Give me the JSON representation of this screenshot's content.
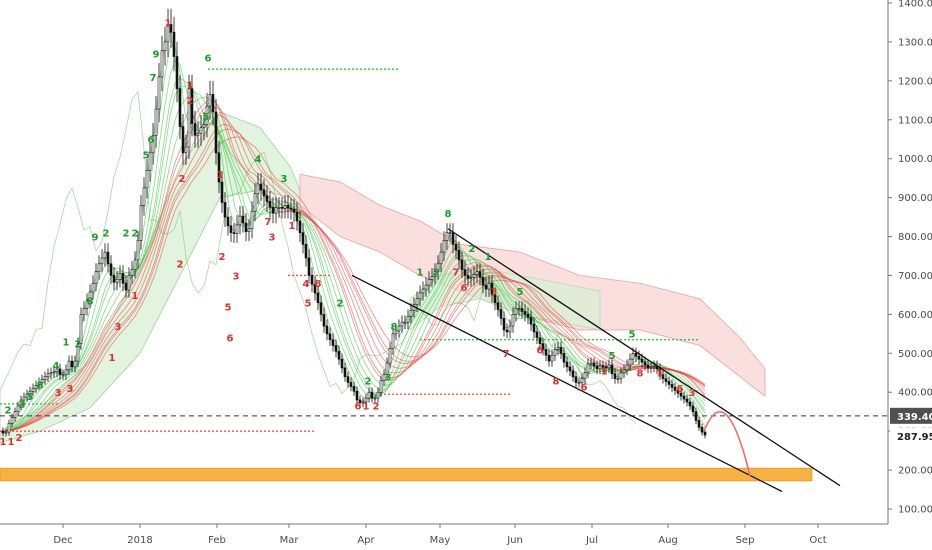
{
  "chart_data": {
    "type": "candlestick",
    "x_labels": [
      "Dec",
      "2018",
      "Feb",
      "Mar",
      "Apr",
      "May",
      "Jun",
      "Jul",
      "Aug",
      "Sep",
      "Oct"
    ],
    "y_ticks": [
      "1400.00",
      "1300.00",
      "1200.00",
      "1100.00",
      "1000.00",
      "900.00",
      "800.00",
      "700.00",
      "600.00",
      "500.00",
      "400.00",
      "300.00",
      "200.00",
      "100.00"
    ],
    "ylim": [
      60,
      1400
    ],
    "price_markers": [
      {
        "label": "339.40",
        "value": 339.4,
        "style": "dark"
      },
      {
        "label": "287.95",
        "value": 287.95,
        "style": "plain"
      }
    ],
    "close_path": [
      [
        0,
        300
      ],
      [
        4,
        290
      ],
      [
        8,
        320
      ],
      [
        12,
        340
      ],
      [
        16,
        360
      ],
      [
        20,
        380
      ],
      [
        24,
        390
      ],
      [
        28,
        400
      ],
      [
        32,
        410
      ],
      [
        36,
        420
      ],
      [
        40,
        430
      ],
      [
        44,
        440
      ],
      [
        48,
        450
      ],
      [
        52,
        450
      ],
      [
        56,
        460
      ],
      [
        60,
        440
      ],
      [
        64,
        450
      ],
      [
        68,
        480
      ],
      [
        72,
        460
      ],
      [
        76,
        500
      ],
      [
        80,
        600
      ],
      [
        84,
        620
      ],
      [
        88,
        650
      ],
      [
        92,
        680
      ],
      [
        96,
        720
      ],
      [
        100,
        740
      ],
      [
        104,
        760
      ],
      [
        108,
        720
      ],
      [
        112,
        680
      ],
      [
        116,
        690
      ],
      [
        120,
        710
      ],
      [
        124,
        650
      ],
      [
        128,
        700
      ],
      [
        132,
        720
      ],
      [
        136,
        760
      ],
      [
        140,
        880
      ],
      [
        144,
        940
      ],
      [
        148,
        1000
      ],
      [
        152,
        1060
      ],
      [
        156,
        1150
      ],
      [
        160,
        1270
      ],
      [
        164,
        1300
      ],
      [
        168,
        1360
      ],
      [
        172,
        1290
      ],
      [
        176,
        1180
      ],
      [
        180,
        1050
      ],
      [
        184,
        980
      ],
      [
        188,
        1180
      ],
      [
        192,
        1060
      ],
      [
        196,
        1060
      ],
      [
        200,
        1080
      ],
      [
        204,
        1090
      ],
      [
        208,
        1180
      ],
      [
        212,
        1120
      ],
      [
        216,
        980
      ],
      [
        220,
        900
      ],
      [
        224,
        850
      ],
      [
        228,
        820
      ],
      [
        232,
        800
      ],
      [
        236,
        830
      ],
      [
        240,
        860
      ],
      [
        244,
        810
      ],
      [
        248,
        820
      ],
      [
        252,
        880
      ],
      [
        256,
        940
      ],
      [
        260,
        920
      ],
      [
        264,
        900
      ],
      [
        268,
        880
      ],
      [
        272,
        860
      ],
      [
        276,
        880
      ],
      [
        280,
        870
      ],
      [
        284,
        880
      ],
      [
        288,
        870
      ],
      [
        292,
        870
      ],
      [
        296,
        840
      ],
      [
        300,
        800
      ],
      [
        304,
        760
      ],
      [
        308,
        700
      ],
      [
        312,
        670
      ],
      [
        316,
        640
      ],
      [
        320,
        600
      ],
      [
        324,
        560
      ],
      [
        328,
        540
      ],
      [
        332,
        520
      ],
      [
        336,
        500
      ],
      [
        340,
        470
      ],
      [
        344,
        440
      ],
      [
        348,
        420
      ],
      [
        352,
        410
      ],
      [
        356,
        380
      ],
      [
        360,
        370
      ],
      [
        364,
        380
      ],
      [
        368,
        400
      ],
      [
        372,
        380
      ],
      [
        376,
        390
      ],
      [
        380,
        430
      ],
      [
        384,
        450
      ],
      [
        388,
        500
      ],
      [
        392,
        550
      ],
      [
        396,
        560
      ],
      [
        400,
        580
      ],
      [
        404,
        580
      ],
      [
        408,
        600
      ],
      [
        412,
        620
      ],
      [
        416,
        640
      ],
      [
        420,
        660
      ],
      [
        424,
        670
      ],
      [
        428,
        690
      ],
      [
        432,
        700
      ],
      [
        436,
        720
      ],
      [
        440,
        760
      ],
      [
        444,
        800
      ],
      [
        448,
        820
      ],
      [
        452,
        780
      ],
      [
        456,
        760
      ],
      [
        460,
        720
      ],
      [
        464,
        700
      ],
      [
        468,
        690
      ],
      [
        472,
        700
      ],
      [
        476,
        710
      ],
      [
        480,
        690
      ],
      [
        484,
        660
      ],
      [
        488,
        680
      ],
      [
        492,
        640
      ],
      [
        496,
        620
      ],
      [
        500,
        590
      ],
      [
        504,
        550
      ],
      [
        508,
        560
      ],
      [
        512,
        600
      ],
      [
        516,
        620
      ],
      [
        520,
        610
      ],
      [
        524,
        600
      ],
      [
        528,
        590
      ],
      [
        532,
        560
      ],
      [
        536,
        540
      ],
      [
        540,
        520
      ],
      [
        544,
        500
      ],
      [
        548,
        480
      ],
      [
        552,
        500
      ],
      [
        556,
        520
      ],
      [
        560,
        500
      ],
      [
        564,
        470
      ],
      [
        568,
        460
      ],
      [
        572,
        440
      ],
      [
        576,
        420
      ],
      [
        580,
        430
      ],
      [
        584,
        450
      ],
      [
        588,
        480
      ],
      [
        592,
        470
      ],
      [
        596,
        460
      ],
      [
        600,
        470
      ],
      [
        604,
        460
      ],
      [
        608,
        470
      ],
      [
        612,
        440
      ],
      [
        616,
        430
      ],
      [
        620,
        450
      ],
      [
        624,
        460
      ],
      [
        628,
        480
      ],
      [
        632,
        500
      ],
      [
        636,
        490
      ],
      [
        640,
        480
      ],
      [
        644,
        470
      ],
      [
        648,
        460
      ],
      [
        652,
        470
      ],
      [
        656,
        460
      ],
      [
        660,
        440
      ],
      [
        664,
        430
      ],
      [
        668,
        420
      ],
      [
        672,
        410
      ],
      [
        676,
        400
      ],
      [
        680,
        390
      ],
      [
        684,
        380
      ],
      [
        688,
        370
      ],
      [
        692,
        350
      ],
      [
        696,
        320
      ],
      [
        700,
        300
      ],
      [
        704,
        290
      ]
    ],
    "td_labels": [
      {
        "t": "1",
        "x": 3,
        "v": 265,
        "c": "red"
      },
      {
        "t": "1",
        "x": 11,
        "v": 265,
        "c": "red"
      },
      {
        "t": "2",
        "x": 19,
        "v": 275,
        "c": "red"
      },
      {
        "t": "2",
        "x": 8,
        "v": 345,
        "c": "green"
      },
      {
        "t": "3",
        "x": 22,
        "v": 360,
        "c": "green"
      },
      {
        "t": "5",
        "x": 30,
        "v": 380,
        "c": "green"
      },
      {
        "t": "8",
        "x": 40,
        "v": 410,
        "c": "green"
      },
      {
        "t": "3",
        "x": 58,
        "v": 390,
        "c": "red"
      },
      {
        "t": "3",
        "x": 70,
        "v": 400,
        "c": "red"
      },
      {
        "t": "4",
        "x": 56,
        "v": 460,
        "c": "green"
      },
      {
        "t": "1",
        "x": 66,
        "v": 520,
        "c": "green"
      },
      {
        "t": "2",
        "x": 78,
        "v": 515,
        "c": "green"
      },
      {
        "t": "8",
        "x": 90,
        "v": 625,
        "c": "green"
      },
      {
        "t": "9",
        "x": 95,
        "v": 790,
        "c": "green"
      },
      {
        "t": "2",
        "x": 106,
        "v": 800,
        "c": "green"
      },
      {
        "t": "3",
        "x": 118,
        "v": 560,
        "c": "red"
      },
      {
        "t": "1",
        "x": 112,
        "v": 480,
        "c": "red"
      },
      {
        "t": "2",
        "x": 126,
        "v": 800,
        "c": "green"
      },
      {
        "t": "2",
        "x": 135,
        "v": 800,
        "c": "green"
      },
      {
        "t": "1",
        "x": 135,
        "v": 640,
        "c": "red"
      },
      {
        "t": "5",
        "x": 146,
        "v": 1000,
        "c": "green"
      },
      {
        "t": "6",
        "x": 151,
        "v": 1040,
        "c": "green"
      },
      {
        "t": "7",
        "x": 153,
        "v": 1200,
        "c": "green"
      },
      {
        "t": "9",
        "x": 156,
        "v": 1260,
        "c": "green"
      },
      {
        "t": "1",
        "x": 168,
        "v": 1340,
        "c": "red"
      },
      {
        "t": "2",
        "x": 180,
        "v": 720,
        "c": "red"
      },
      {
        "t": "2",
        "x": 182,
        "v": 940,
        "c": "red"
      },
      {
        "t": "1",
        "x": 190,
        "v": 1180,
        "c": "red"
      },
      {
        "t": "2",
        "x": 190,
        "v": 1140,
        "c": "red"
      },
      {
        "t": "5",
        "x": 206,
        "v": 1100,
        "c": "green"
      },
      {
        "t": "6",
        "x": 208,
        "v": 1250,
        "c": "green"
      },
      {
        "t": "1",
        "x": 220,
        "v": 950,
        "c": "red"
      },
      {
        "t": "2",
        "x": 222,
        "v": 740,
        "c": "red"
      },
      {
        "t": "5",
        "x": 228,
        "v": 610,
        "c": "red"
      },
      {
        "t": "6",
        "x": 230,
        "v": 530,
        "c": "red"
      },
      {
        "t": "3",
        "x": 236,
        "v": 690,
        "c": "red"
      },
      {
        "t": "4",
        "x": 258,
        "v": 990,
        "c": "green"
      },
      {
        "t": "7",
        "x": 268,
        "v": 830,
        "c": "red"
      },
      {
        "t": "3",
        "x": 272,
        "v": 790,
        "c": "red"
      },
      {
        "t": "3",
        "x": 284,
        "v": 940,
        "c": "green"
      },
      {
        "t": "1",
        "x": 292,
        "v": 820,
        "c": "red"
      },
      {
        "t": "4",
        "x": 306,
        "v": 670,
        "c": "red"
      },
      {
        "t": "5",
        "x": 308,
        "v": 620,
        "c": "red"
      },
      {
        "t": "8",
        "x": 318,
        "v": 670,
        "c": "red"
      },
      {
        "t": "2",
        "x": 340,
        "v": 620,
        "c": "green"
      },
      {
        "t": "6",
        "x": 358,
        "v": 355,
        "c": "red"
      },
      {
        "t": "1",
        "x": 366,
        "v": 355,
        "c": "red"
      },
      {
        "t": "2",
        "x": 376,
        "v": 355,
        "c": "red"
      },
      {
        "t": "2",
        "x": 368,
        "v": 420,
        "c": "green"
      },
      {
        "t": "3",
        "x": 388,
        "v": 430,
        "c": "green"
      },
      {
        "t": "8",
        "x": 394,
        "v": 560,
        "c": "green"
      },
      {
        "t": "1",
        "x": 420,
        "v": 700,
        "c": "green"
      },
      {
        "t": "2",
        "x": 436,
        "v": 700,
        "c": "green"
      },
      {
        "t": "8",
        "x": 448,
        "v": 850,
        "c": "green"
      },
      {
        "t": "7",
        "x": 456,
        "v": 700,
        "c": "red"
      },
      {
        "t": "6",
        "x": 464,
        "v": 660,
        "c": "red"
      },
      {
        "t": "2",
        "x": 472,
        "v": 760,
        "c": "green"
      },
      {
        "t": "1",
        "x": 488,
        "v": 740,
        "c": "green"
      },
      {
        "t": "3",
        "x": 494,
        "v": 650,
        "c": "red"
      },
      {
        "t": "5",
        "x": 520,
        "v": 650,
        "c": "green"
      },
      {
        "t": "7",
        "x": 506,
        "v": 490,
        "c": "red"
      },
      {
        "t": "6",
        "x": 540,
        "v": 500,
        "c": "red"
      },
      {
        "t": "8",
        "x": 556,
        "v": 420,
        "c": "red"
      },
      {
        "t": "6",
        "x": 584,
        "v": 405,
        "c": "red"
      },
      {
        "t": "1",
        "x": 604,
        "v": 445,
        "c": "red"
      },
      {
        "t": "5",
        "x": 612,
        "v": 485,
        "c": "green"
      },
      {
        "t": "8",
        "x": 640,
        "v": 440,
        "c": "red"
      },
      {
        "t": "5",
        "x": 632,
        "v": 540,
        "c": "green"
      },
      {
        "t": "1",
        "x": 660,
        "v": 440,
        "c": "red"
      },
      {
        "t": "6",
        "x": 680,
        "v": 400,
        "c": "red"
      },
      {
        "t": "3",
        "x": 692,
        "v": 390,
        "c": "red"
      }
    ],
    "colors": {
      "green": "#1a9c2a",
      "red": "#e03030",
      "orange": "#f5a623",
      "price_tag": "#505050"
    }
  }
}
